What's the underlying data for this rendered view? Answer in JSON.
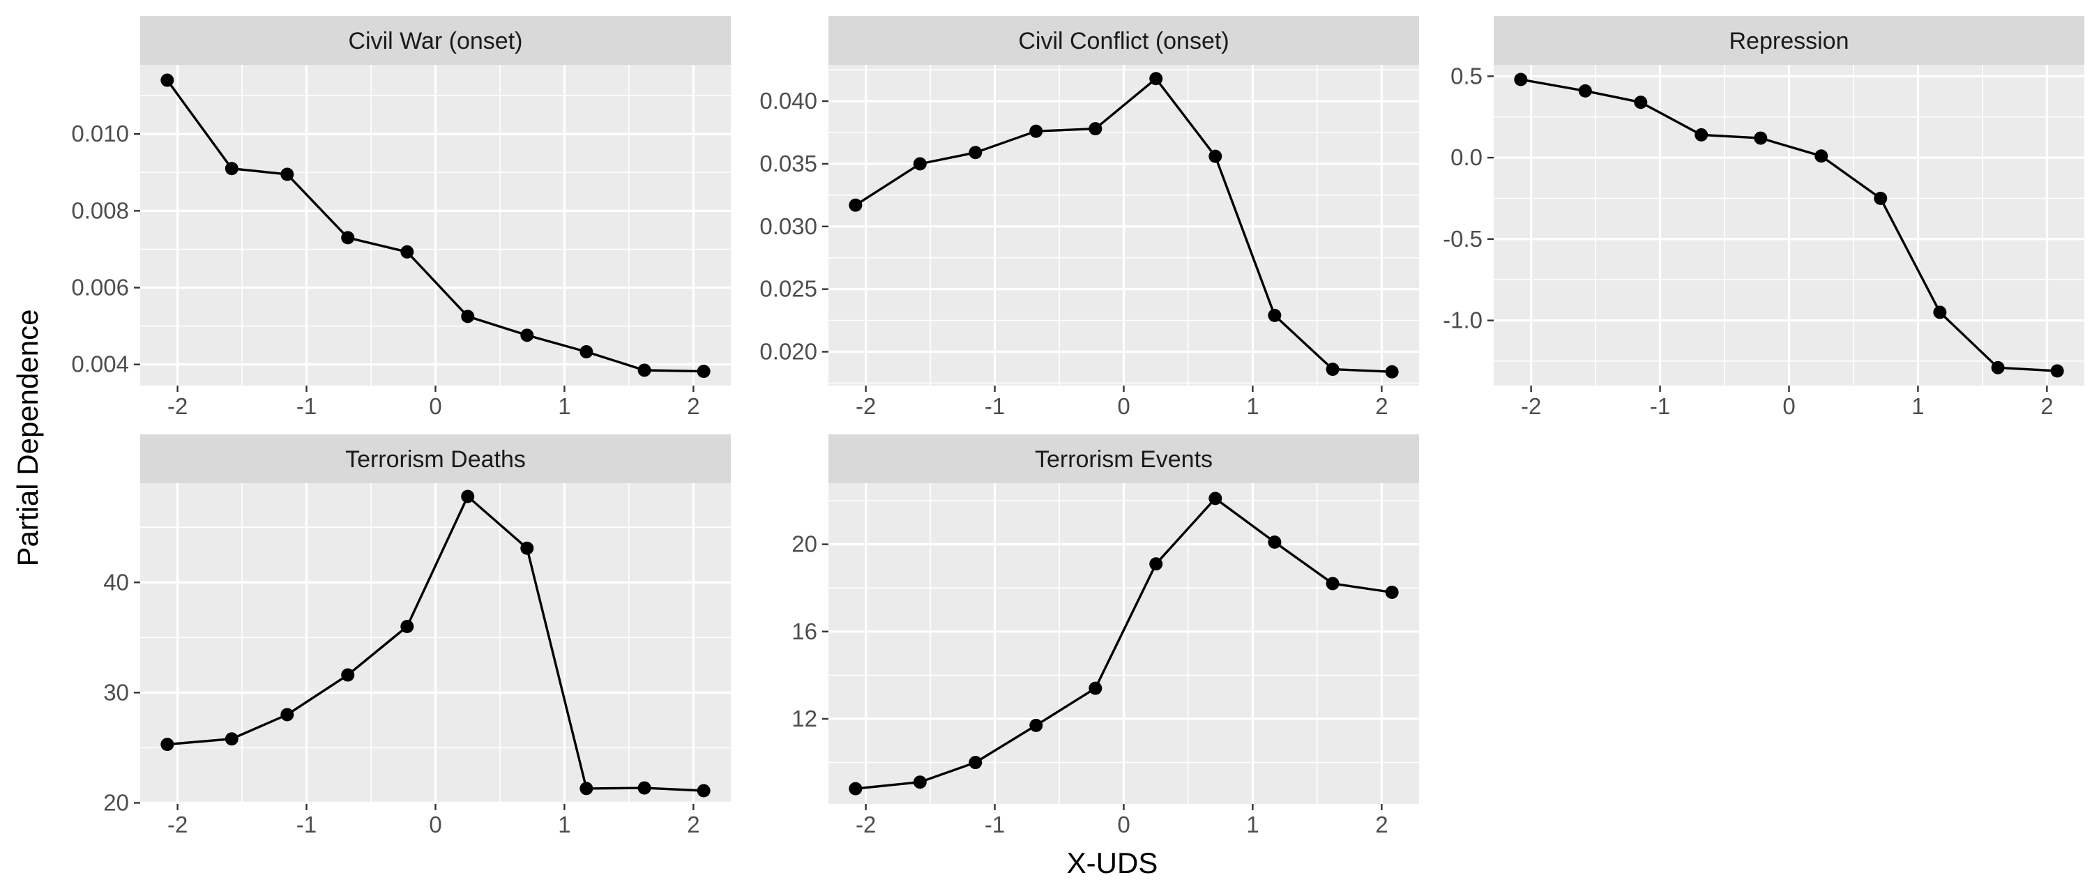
{
  "figure": {
    "xlabel": "X-UDS",
    "ylabel": "Partial Dependence"
  },
  "chart_data": [
    {
      "type": "line",
      "title": "Civil War (onset)",
      "x": [
        -2.08,
        -1.58,
        -1.15,
        -0.68,
        -0.22,
        0.25,
        0.71,
        1.17,
        1.62,
        2.08
      ],
      "y": [
        0.0114,
        0.0091,
        0.00895,
        0.0073,
        0.00693,
        0.00525,
        0.00476,
        0.00433,
        0.00385,
        0.00382
      ],
      "xlim": [
        -2.29,
        2.29
      ],
      "ylim": [
        0.00345,
        0.0118
      ],
      "xticks": [
        -2,
        -1,
        0,
        1,
        2
      ],
      "xtick_labels": [
        "-2",
        "-1",
        "0",
        "1",
        "2"
      ],
      "yticks": [
        0.004,
        0.006,
        0.008,
        0.01
      ],
      "ytick_labels": [
        "0.004",
        "0.006",
        "0.008",
        "0.010"
      ],
      "grid": true
    },
    {
      "type": "line",
      "title": "Civil Conflict (onset)",
      "x": [
        -2.08,
        -1.58,
        -1.15,
        -0.68,
        -0.22,
        0.25,
        0.71,
        1.17,
        1.62,
        2.08
      ],
      "y": [
        0.0317,
        0.035,
        0.0359,
        0.0376,
        0.0378,
        0.0418,
        0.0356,
        0.0229,
        0.0186,
        0.0184
      ],
      "xlim": [
        -2.29,
        2.29
      ],
      "ylim": [
        0.0173,
        0.0429
      ],
      "xticks": [
        -2,
        -1,
        0,
        1,
        2
      ],
      "xtick_labels": [
        "-2",
        "-1",
        "0",
        "1",
        "2"
      ],
      "yticks": [
        0.02,
        0.025,
        0.03,
        0.035,
        0.04
      ],
      "ytick_labels": [
        "0.020",
        "0.025",
        "0.030",
        "0.035",
        "0.040"
      ],
      "grid": true
    },
    {
      "type": "line",
      "title": "Repression",
      "x": [
        -2.08,
        -1.58,
        -1.15,
        -0.68,
        -0.22,
        0.25,
        0.71,
        1.17,
        1.62,
        2.08
      ],
      "y": [
        0.48,
        0.41,
        0.34,
        0.14,
        0.12,
        0.01,
        -0.25,
        -0.95,
        -1.29,
        -1.31
      ],
      "xlim": [
        -2.29,
        2.29
      ],
      "ylim": [
        -1.4,
        0.57
      ],
      "xticks": [
        -2,
        -1,
        0,
        1,
        2
      ],
      "xtick_labels": [
        "-2",
        "-1",
        "0",
        "1",
        "2"
      ],
      "yticks": [
        -1.0,
        -0.5,
        0.0,
        0.5
      ],
      "ytick_labels": [
        "-1.0",
        "-0.5",
        "0.0",
        "0.5"
      ],
      "grid": true
    },
    {
      "type": "line",
      "title": "Terrorism Deaths",
      "x": [
        -2.08,
        -1.58,
        -1.15,
        -0.68,
        -0.22,
        0.25,
        0.71,
        1.17,
        1.62,
        2.08
      ],
      "y": [
        25.3,
        25.8,
        28.0,
        31.6,
        36.0,
        47.8,
        43.1,
        21.3,
        21.35,
        21.1
      ],
      "xlim": [
        -2.29,
        2.29
      ],
      "ylim": [
        19.9,
        49.0
      ],
      "xticks": [
        -2,
        -1,
        0,
        1,
        2
      ],
      "xtick_labels": [
        "-2",
        "-1",
        "0",
        "1",
        "2"
      ],
      "yticks": [
        20,
        30,
        40
      ],
      "ytick_labels": [
        "20",
        "30",
        "40"
      ],
      "grid": true
    },
    {
      "type": "line",
      "title": "Terrorism Events",
      "x": [
        -2.08,
        -1.58,
        -1.15,
        -0.68,
        -0.22,
        0.25,
        0.71,
        1.17,
        1.62,
        2.08
      ],
      "y": [
        8.8,
        9.1,
        10.0,
        11.7,
        13.4,
        19.1,
        22.1,
        20.1,
        18.2,
        17.8
      ],
      "xlim": [
        -2.29,
        2.29
      ],
      "ylim": [
        8.1,
        22.8
      ],
      "xticks": [
        -2,
        -1,
        0,
        1,
        2
      ],
      "xtick_labels": [
        "-2",
        "-1",
        "0",
        "1",
        "2"
      ],
      "yticks": [
        12,
        16,
        20
      ],
      "ytick_labels": [
        "12",
        "16",
        "20"
      ],
      "grid": true
    }
  ]
}
